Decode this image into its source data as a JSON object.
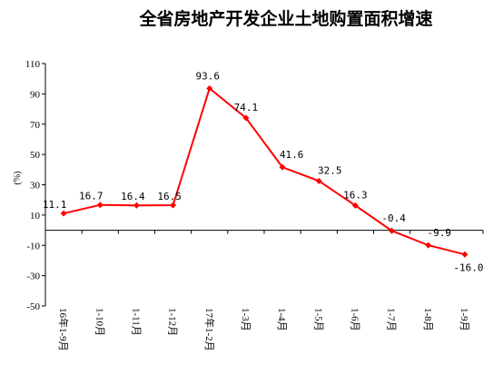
{
  "chart_data": {
    "type": "line",
    "title": "全省房地产开发企业土地购置面积增速",
    "xlabel": "",
    "ylabel": "(%)",
    "categories": [
      "16年1-9月",
      "1-10月",
      "1-11月",
      "1-12月",
      "17年1-2月",
      "1-3月",
      "1-4月",
      "1-5月",
      "1-6月",
      "1-7月",
      "1-8月",
      "1-9月"
    ],
    "series": [
      {
        "name": "",
        "values": [
          11.1,
          16.7,
          16.4,
          16.5,
          93.6,
          74.1,
          41.6,
          32.5,
          16.3,
          -0.4,
          -9.9,
          -16.0
        ],
        "labels": [
          "11.1",
          "16.7",
          "16.4",
          "16.5",
          "93.6",
          "74.1",
          "41.6",
          "32.5",
          "16.3",
          "-0.4",
          "-9.9",
          "-16.0"
        ]
      }
    ],
    "yticks": [
      110,
      90,
      70,
      50,
      30,
      10,
      -10,
      -30,
      -50
    ],
    "ylim": [
      -50,
      110
    ],
    "grid": false,
    "legend": "none",
    "line_color": "#ff0000"
  }
}
